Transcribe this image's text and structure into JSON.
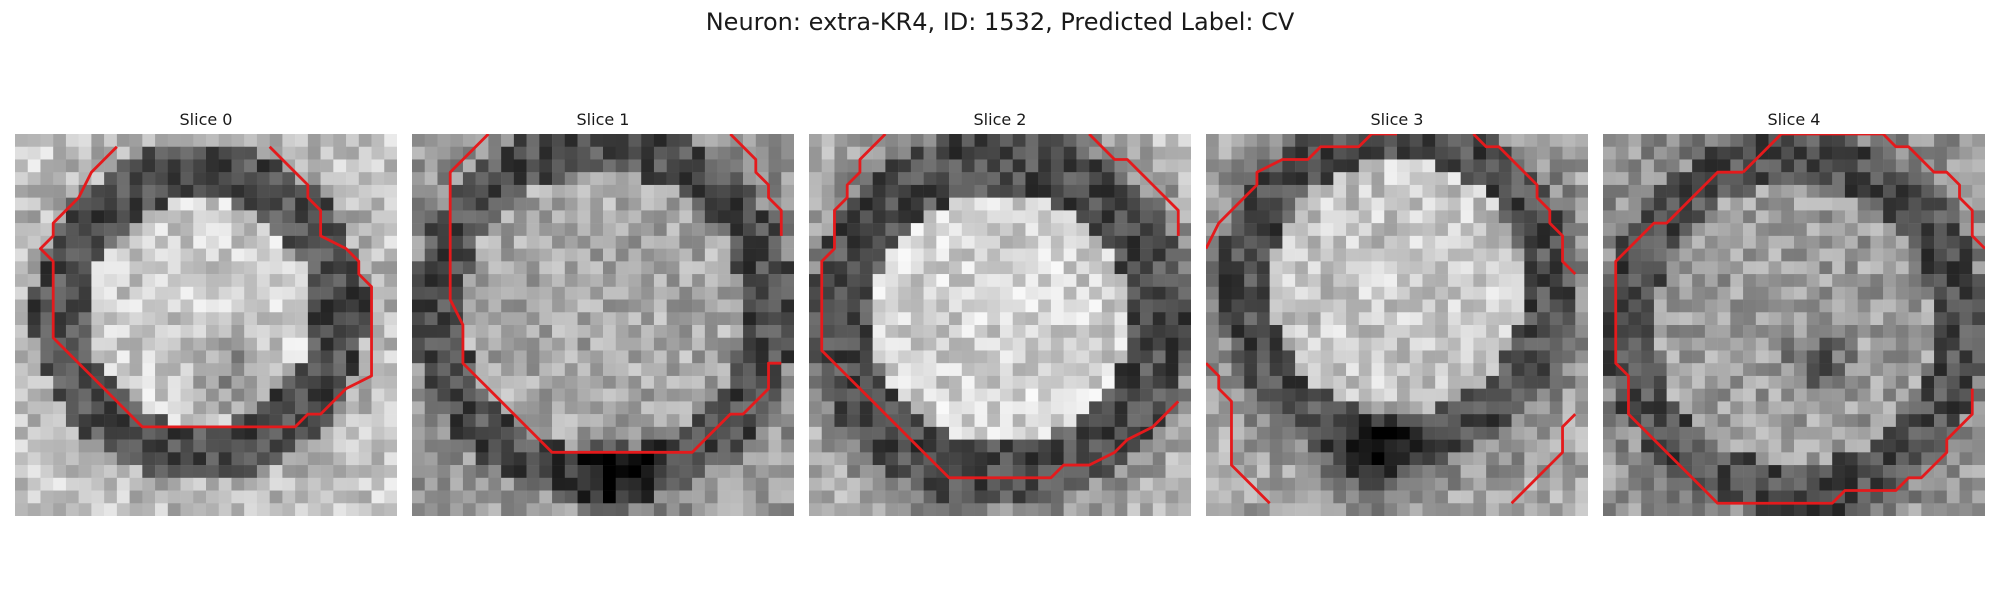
{
  "figure": {
    "title": "Neuron: extra-KR4, ID: 1532, Predicted Label: CV"
  },
  "contour_color": "#e41a1c",
  "panels": [
    {
      "title": "Slice 0",
      "seed": 11,
      "texture": "ring-dark-center"
    },
    {
      "title": "Slice 1",
      "seed": 23,
      "texture": "mottled-dark-bottom"
    },
    {
      "title": "Slice 2",
      "seed": 37,
      "texture": "bright-round"
    },
    {
      "title": "Slice 3",
      "seed": 51,
      "texture": "bright-top-dark-bottom"
    },
    {
      "title": "Slice 4",
      "seed": 67,
      "texture": "mottled-dark-center"
    }
  ]
}
